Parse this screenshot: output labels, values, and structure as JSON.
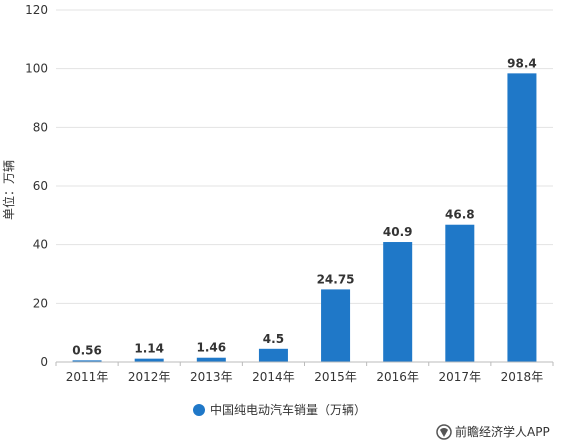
{
  "chart_data": {
    "type": "bar",
    "categories": [
      "2011年",
      "2012年",
      "2013年",
      "2014年",
      "2015年",
      "2016年",
      "2017年",
      "2018年"
    ],
    "series": [
      {
        "name": "中国纯电动汽车销量（万辆）",
        "values": [
          0.56,
          1.14,
          1.46,
          4.5,
          24.75,
          40.9,
          46.8,
          98.4
        ],
        "labels": [
          "0.56",
          "1.14",
          "1.46",
          "4.5",
          "24.75",
          "40.9",
          "46.8",
          "98.4"
        ]
      }
    ],
    "ylabel": "单位：万辆",
    "ylim": [
      0,
      120
    ],
    "yticks": [
      0,
      20,
      40,
      60,
      80,
      100,
      120
    ],
    "grid": true,
    "legend_position": "bottom-center",
    "bar_color": "#1f78c8"
  },
  "credit": {
    "icon": "logo-icon",
    "text": "前瞻经济学人APP"
  }
}
